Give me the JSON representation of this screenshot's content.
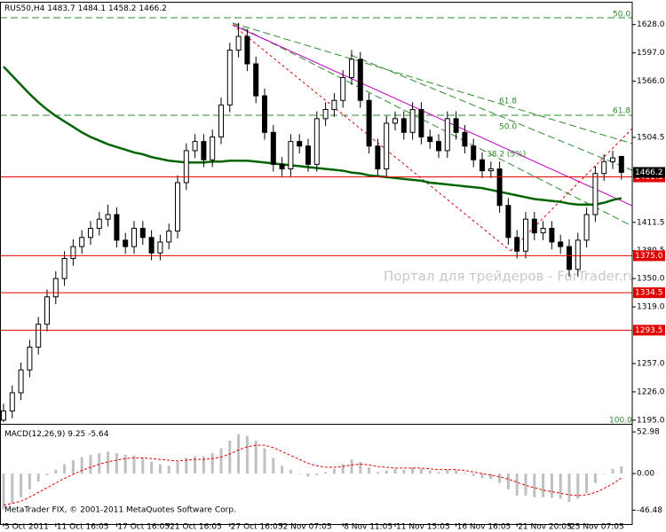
{
  "chart_data": {
    "type": "candlestick",
    "symbol": "RUS50,H4",
    "categories": [
      "5 Oct 2011",
      null,
      null,
      null,
      null,
      null,
      "11 Oct 16:05",
      null,
      null,
      null,
      null,
      null,
      null,
      "17 Oct 16:05",
      null,
      null,
      null,
      null,
      null,
      "21 Oct 16:05",
      null,
      null,
      null,
      null,
      null,
      null,
      "27 Oct 16:05",
      null,
      null,
      null,
      null,
      null,
      "2 Nov 07:05",
      null,
      null,
      null,
      null,
      null,
      null,
      "8 Nov 11:05",
      null,
      null,
      null,
      null,
      null,
      "11 Nov 15:05",
      null,
      null,
      null,
      null,
      null,
      null,
      "16 Nov 16:05",
      null,
      null,
      null,
      null,
      null,
      null,
      "21 Nov 20:05",
      null,
      null,
      null,
      null,
      null,
      "25 Nov 07:05",
      null,
      null,
      null,
      null,
      null,
      null
    ],
    "open": [
      1195,
      1205,
      1225,
      1250,
      1275,
      1300,
      1330,
      1350,
      1372,
      1385,
      1395,
      1405,
      1415,
      1420,
      1392,
      1385,
      1405,
      1395,
      1378,
      1390,
      1402,
      1455,
      1490,
      1500,
      1480,
      1505,
      1540,
      1600,
      1615,
      1585,
      1550,
      1510,
      1475,
      1470,
      1500,
      1495,
      1475,
      1525,
      1535,
      1545,
      1570,
      1590,
      1545,
      1495,
      1470,
      1520,
      1525,
      1510,
      1535,
      1505,
      1500,
      1490,
      1525,
      1510,
      1495,
      1480,
      1468,
      1470,
      1430,
      1395,
      1380,
      1415,
      1400,
      1405,
      1390,
      1385,
      1360,
      1392,
      1420,
      1465,
      1478,
      1483.7
    ],
    "high": [
      1213,
      1233,
      1258,
      1283,
      1308,
      1338,
      1358,
      1380,
      1393,
      1403,
      1413,
      1423,
      1431,
      1428,
      1400,
      1413,
      1413,
      1403,
      1398,
      1410,
      1463,
      1498,
      1508,
      1508,
      1513,
      1548,
      1608,
      1630,
      1623,
      1593,
      1558,
      1518,
      1483,
      1508,
      1508,
      1503,
      1533,
      1543,
      1553,
      1578,
      1600,
      1598,
      1553,
      1503,
      1528,
      1533,
      1533,
      1543,
      1543,
      1513,
      1508,
      1533,
      1533,
      1518,
      1503,
      1488,
      1478,
      1478,
      1438,
      1403,
      1423,
      1423,
      1413,
      1413,
      1398,
      1393,
      1400,
      1428,
      1473,
      1486,
      1490,
      1484.1
    ],
    "low": [
      1193,
      1197,
      1217,
      1242,
      1267,
      1292,
      1322,
      1342,
      1364,
      1377,
      1387,
      1397,
      1407,
      1384,
      1377,
      1377,
      1387,
      1370,
      1370,
      1382,
      1394,
      1447,
      1482,
      1472,
      1472,
      1497,
      1532,
      1592,
      1577,
      1542,
      1502,
      1467,
      1462,
      1462,
      1487,
      1467,
      1467,
      1517,
      1527,
      1537,
      1562,
      1537,
      1487,
      1462,
      1462,
      1512,
      1502,
      1502,
      1497,
      1492,
      1482,
      1482,
      1502,
      1487,
      1472,
      1460,
      1460,
      1422,
      1387,
      1372,
      1372,
      1392,
      1392,
      1382,
      1377,
      1352,
      1352,
      1384,
      1412,
      1457,
      1470,
      1458.2
    ],
    "close": [
      1205,
      1225,
      1250,
      1275,
      1300,
      1330,
      1350,
      1372,
      1385,
      1395,
      1405,
      1415,
      1420,
      1392,
      1385,
      1405,
      1395,
      1378,
      1390,
      1402,
      1455,
      1490,
      1500,
      1480,
      1505,
      1540,
      1600,
      1615,
      1585,
      1550,
      1510,
      1475,
      1470,
      1500,
      1495,
      1475,
      1525,
      1535,
      1545,
      1570,
      1590,
      1545,
      1495,
      1470,
      1520,
      1525,
      1510,
      1535,
      1505,
      1500,
      1490,
      1525,
      1510,
      1495,
      1480,
      1468,
      1470,
      1430,
      1395,
      1380,
      1415,
      1400,
      1405,
      1390,
      1385,
      1360,
      1392,
      1420,
      1465,
      1478,
      1482,
      1466.2
    ],
    "ylim": [
      1191,
      1651
    ],
    "yticks": [
      {
        "value": 1628,
        "label": "1628.0"
      },
      {
        "value": 1597,
        "label": "1597.0"
      },
      {
        "value": 1566,
        "label": "1566.0"
      },
      1504.5,
      1411.5,
      1380.5,
      {
        "value": 1350,
        "label": "1350.0"
      },
      {
        "value": 1319,
        "label": "1319.0"
      },
      {
        "value": 1257,
        "label": "1257.0"
      },
      {
        "value": 1226,
        "label": "1226.0"
      },
      {
        "value": 1195,
        "label": "1195.0"
      }
    ],
    "ma": {
      "color": "#006400",
      "values": [
        1582,
        1572,
        1562,
        1552,
        1543,
        1535,
        1528,
        1522,
        1516,
        1510,
        1505,
        1501,
        1497,
        1494,
        1491,
        1488,
        1486,
        1483,
        1481,
        1479,
        1478,
        1477,
        1477,
        1477,
        1478,
        1478,
        1479,
        1479,
        1479,
        1478,
        1477,
        1476,
        1475,
        1474,
        1473,
        1472,
        1471,
        1470,
        1469,
        1468,
        1466,
        1465,
        1463,
        1462,
        1461,
        1460,
        1459,
        1458,
        1457,
        1455,
        1454,
        1453,
        1452,
        1451,
        1450,
        1449,
        1447,
        1445,
        1443,
        1441,
        1439,
        1437,
        1436,
        1435,
        1434,
        1432,
        1431,
        1431,
        1431,
        1433,
        1436,
        1438
      ]
    },
    "hlines": {
      "color": "#e00000",
      "values": [
        1461.3,
        {
          "value": 1375,
          "label": "1375.0"
        },
        1334.5,
        1293.5
      ]
    },
    "annotations": [
      "50.0",
      "61.8",
      "61.8",
      "50.0",
      "38.2 (5%)",
      "100.0"
    ],
    "watermark": "Портал для трейдеров - ForTrader.ru",
    "footer": "MetaTrader FIX, © 2001-2011 MetaQuotes Software Corp.",
    "macd": {
      "name": "MACD(12,26,9)",
      "histogram": [
        -45,
        -38,
        -30,
        -20,
        -10,
        -2,
        5,
        12,
        17,
        21,
        24,
        26,
        28,
        26,
        24,
        23,
        20,
        15,
        12,
        10,
        15,
        20,
        22,
        22,
        26,
        32,
        42,
        50,
        48,
        42,
        32,
        20,
        10,
        5,
        0,
        -4,
        -2,
        2,
        6,
        12,
        18,
        15,
        8,
        2,
        4,
        6,
        5,
        8,
        6,
        4,
        2,
        5,
        4,
        1,
        -3,
        -6,
        -7,
        -12,
        -20,
        -28,
        -28,
        -30,
        -30,
        -31,
        -32,
        -36,
        -32,
        -25,
        -12,
        0,
        6,
        9.25
      ],
      "signal": [
        -40,
        -38,
        -35,
        -30,
        -24,
        -18,
        -12,
        -6,
        -1,
        4,
        8,
        12,
        15,
        17,
        19,
        20,
        20,
        19,
        18,
        17,
        16,
        17,
        18,
        18,
        19,
        21,
        25,
        30,
        34,
        36,
        36,
        33,
        28,
        23,
        18,
        13,
        10,
        8,
        8,
        9,
        11,
        12,
        11,
        9,
        8,
        7,
        7,
        7,
        7,
        6,
        5,
        5,
        5,
        4,
        2,
        0,
        -2,
        -4,
        -7,
        -11,
        -15,
        -18,
        -21,
        -23,
        -25,
        -27,
        -28,
        -27,
        -24,
        -19,
        -13,
        -5.64
      ],
      "histogram_color": "#c0c0c0",
      "signal_color": "#e00000",
      "ylim": [
        -63,
        61
      ],
      "yticks": [
        52.98,
        {
          "value": 0,
          "label": "0.00"
        },
        -46.48
      ]
    }
  }
}
